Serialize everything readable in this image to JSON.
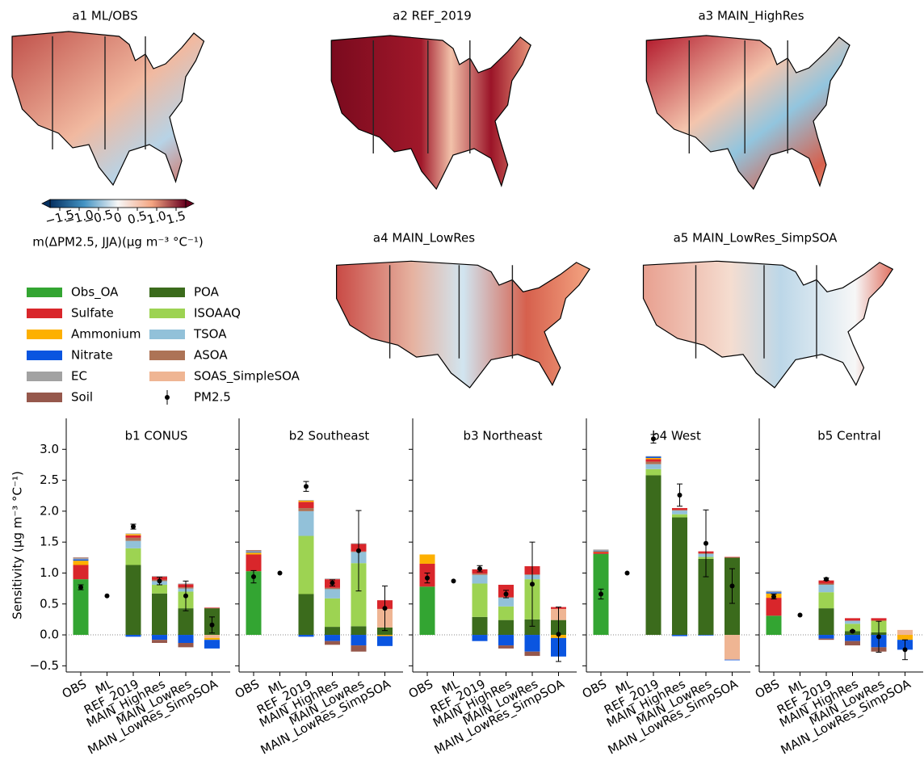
{
  "maps": [
    {
      "title": "a1 ML/OBS"
    },
    {
      "title": "a2 REF_2019"
    },
    {
      "title": "a3 MAIN_HighRes"
    },
    {
      "title": "a4 MAIN_LowRes"
    },
    {
      "title": "a5 MAIN_LowRes_SimpSOA"
    }
  ],
  "colorbar": {
    "label": "m(ΔPM2.5, JJA)(μg m⁻³ °C⁻¹)",
    "clim": [
      -1.75,
      1.75
    ],
    "ticks": [
      {
        "value": -1.5,
        "label": "−1.5"
      },
      {
        "value": -1,
        "label": "−1.0"
      },
      {
        "value": -0.5,
        "label": "−0.5"
      },
      0,
      0.5,
      {
        "value": 1,
        "label": "1.0"
      },
      1.5
    ]
  },
  "chart_data": [
    {
      "type": "bar",
      "title": "b1 CONUS",
      "ylabel": "Sensitivity (μg m⁻³ °C⁻¹)",
      "ylim": [
        -0.6,
        3.5
      ],
      "yticks": [
        {
          "value": -0.5,
          "label": "−0.5"
        },
        {
          "value": 0,
          "label": "0.0"
        },
        0.5,
        {
          "value": 1,
          "label": "1.0"
        },
        1.5,
        {
          "value": 2,
          "label": "2.0"
        },
        2.5,
        {
          "value": 3,
          "label": "3.0"
        }
      ],
      "categories": [
        "OBS",
        "ML",
        "REF_2019",
        "MAIN_HighRes",
        "MAIN_LowRes",
        "MAIN_LowRes_SimpSOA"
      ],
      "series": [
        {
          "name": "Obs_OA",
          "color": "#33a532",
          "values": [
            0.9,
            null,
            null,
            null,
            null,
            null
          ]
        },
        {
          "name": "POA",
          "color": "#3b6b1c",
          "values": [
            null,
            null,
            1.13,
            0.67,
            0.43,
            0.43
          ]
        },
        {
          "name": "ISOAAQ",
          "color": "#9dd352",
          "values": [
            null,
            null,
            0.27,
            0.14,
            0.27,
            null
          ]
        },
        {
          "name": "TSOA",
          "color": "#92c1d9",
          "values": [
            null,
            null,
            0.12,
            0.06,
            0.05,
            null
          ]
        },
        {
          "name": "ASOA",
          "color": "#ad7356",
          "values": [
            null,
            null,
            0.05,
            0.02,
            0.02,
            null
          ]
        },
        {
          "name": "SOAS_SimpleSOA",
          "color": "#efb593",
          "values": [
            null,
            null,
            null,
            null,
            null,
            -0.05
          ]
        },
        {
          "name": "Sulfate",
          "color": "#d9262b",
          "values": [
            0.23,
            null,
            0.04,
            0.05,
            0.05,
            0.01
          ]
        },
        {
          "name": "Ammonium",
          "color": "#fdb000",
          "values": [
            0.07,
            null,
            0.02,
            null,
            null,
            -0.03
          ]
        },
        {
          "name": "Nitrate",
          "color": "#0a55e0",
          "values": [
            0.02,
            null,
            -0.03,
            -0.08,
            -0.13,
            -0.14
          ]
        },
        {
          "name": "EC",
          "color": "#a2a2a2",
          "values": [
            0.02,
            null,
            0.01,
            0.01,
            0.01,
            null
          ]
        },
        {
          "name": "Soil",
          "color": "#96584c",
          "values": [
            0.01,
            null,
            null,
            -0.05,
            -0.07,
            null
          ]
        }
      ],
      "points": {
        "name": "PM2.5",
        "color": "#000000",
        "values": [
          0.77,
          0.63,
          1.75,
          0.87,
          0.63,
          0.16
        ],
        "errors": [
          0.04,
          null,
          0.04,
          0.06,
          0.24,
          0.13
        ]
      }
    },
    {
      "type": "bar",
      "title": "b2 Southeast",
      "ylim": [
        -0.6,
        3.5
      ],
      "categories": [
        "OBS",
        "ML",
        "REF_2019",
        "MAIN_HighRes",
        "MAIN_LowRes",
        "MAIN_LowRes_SimpSOA"
      ],
      "series": [
        {
          "name": "Obs_OA",
          "color": "#33a532",
          "values": [
            1.03,
            null,
            null,
            null,
            null,
            null
          ]
        },
        {
          "name": "POA",
          "color": "#3b6b1c",
          "values": [
            null,
            null,
            0.66,
            0.13,
            0.14,
            0.12
          ]
        },
        {
          "name": "ISOAAQ",
          "color": "#9dd352",
          "values": [
            null,
            null,
            0.94,
            0.46,
            1.02,
            null
          ]
        },
        {
          "name": "TSOA",
          "color": "#92c1d9",
          "values": [
            null,
            null,
            0.4,
            0.15,
            0.18,
            null
          ]
        },
        {
          "name": "ASOA",
          "color": "#ad7356",
          "values": [
            null,
            null,
            0.05,
            0.02,
            0.01,
            null
          ]
        },
        {
          "name": "SOAS_SimpleSOA",
          "color": "#efb593",
          "values": [
            null,
            null,
            null,
            null,
            null,
            0.3
          ]
        },
        {
          "name": "Sulfate",
          "color": "#d9262b",
          "values": [
            0.27,
            null,
            0.1,
            0.14,
            0.12,
            0.14
          ]
        },
        {
          "name": "Ammonium",
          "color": "#fdb000",
          "values": [
            0.03,
            null,
            0.02,
            null,
            null,
            -0.02
          ]
        },
        {
          "name": "Nitrate",
          "color": "#0a55e0",
          "values": [
            0.01,
            null,
            -0.03,
            -0.1,
            -0.17,
            -0.16
          ]
        },
        {
          "name": "EC",
          "color": "#a2a2a2",
          "values": [
            0.02,
            null,
            0.01,
            0.01,
            0.01,
            null
          ]
        },
        {
          "name": "Soil",
          "color": "#96584c",
          "values": [
            0.01,
            null,
            null,
            -0.06,
            -0.1,
            null
          ]
        }
      ],
      "points": {
        "name": "PM2.5",
        "color": "#000000",
        "values": [
          0.94,
          1.0,
          2.4,
          0.84,
          1.36,
          0.43
        ],
        "errors": [
          0.1,
          null,
          0.08,
          0.05,
          0.65,
          0.36
        ]
      }
    },
    {
      "type": "bar",
      "title": "b3 Northeast",
      "ylim": [
        -0.6,
        3.5
      ],
      "categories": [
        "OBS",
        "ML",
        "REF_2019",
        "MAIN_HighRes",
        "MAIN_LowRes",
        "MAIN_LowRes_SimpSOA"
      ],
      "series": [
        {
          "name": "Obs_OA",
          "color": "#33a532",
          "values": [
            0.78,
            null,
            null,
            null,
            null,
            null
          ]
        },
        {
          "name": "POA",
          "color": "#3b6b1c",
          "values": [
            null,
            null,
            0.29,
            0.24,
            0.25,
            0.24
          ]
        },
        {
          "name": "ISOAAQ",
          "color": "#9dd352",
          "values": [
            null,
            null,
            0.54,
            0.22,
            0.65,
            null
          ]
        },
        {
          "name": "TSOA",
          "color": "#92c1d9",
          "values": [
            null,
            null,
            0.14,
            0.14,
            0.07,
            null
          ]
        },
        {
          "name": "ASOA",
          "color": "#ad7356",
          "values": [
            null,
            null,
            0.02,
            0.01,
            0.01,
            null
          ]
        },
        {
          "name": "SOAS_SimpleSOA",
          "color": "#efb593",
          "values": [
            null,
            null,
            null,
            null,
            null,
            0.18
          ]
        },
        {
          "name": "Sulfate",
          "color": "#d9262b",
          "values": [
            0.37,
            null,
            0.07,
            0.2,
            0.13,
            0.03
          ]
        },
        {
          "name": "Ammonium",
          "color": "#fdb000",
          "values": [
            0.15,
            null,
            null,
            null,
            null,
            -0.05
          ]
        },
        {
          "name": "Nitrate",
          "color": "#0a55e0",
          "values": [
            null,
            null,
            -0.1,
            -0.17,
            -0.27,
            -0.3
          ]
        },
        {
          "name": "EC",
          "color": "#a2a2a2",
          "values": [
            null,
            null,
            null,
            null,
            null,
            null
          ]
        },
        {
          "name": "Soil",
          "color": "#96584c",
          "values": [
            null,
            null,
            null,
            -0.05,
            -0.07,
            null
          ]
        }
      ],
      "points": {
        "name": "PM2.5",
        "color": "#000000",
        "values": [
          0.92,
          0.87,
          1.07,
          0.66,
          0.82,
          0.01
        ],
        "errors": [
          0.08,
          null,
          0.05,
          0.06,
          0.68,
          0.44
        ]
      }
    },
    {
      "type": "bar",
      "title": "b4 West",
      "ylim": [
        -0.6,
        3.5
      ],
      "categories": [
        "OBS",
        "ML",
        "REF_2019",
        "MAIN_HighRes",
        "MAIN_LowRes",
        "MAIN_LowRes_SimpSOA"
      ],
      "series": [
        {
          "name": "Obs_OA",
          "color": "#33a532",
          "values": [
            1.31,
            null,
            null,
            null,
            null,
            null
          ]
        },
        {
          "name": "POA",
          "color": "#3b6b1c",
          "values": [
            null,
            null,
            2.58,
            1.9,
            1.23,
            1.25
          ]
        },
        {
          "name": "ISOAAQ",
          "color": "#9dd352",
          "values": [
            null,
            null,
            0.1,
            0.05,
            0.03,
            null
          ]
        },
        {
          "name": "TSOA",
          "color": "#92c1d9",
          "values": [
            null,
            null,
            0.08,
            0.06,
            0.05,
            null
          ]
        },
        {
          "name": "ASOA",
          "color": "#ad7356",
          "values": [
            null,
            null,
            0.04,
            0.01,
            0.01,
            null
          ]
        },
        {
          "name": "SOAS_SimpleSOA",
          "color": "#efb593",
          "values": [
            null,
            null,
            null,
            null,
            null,
            -0.4
          ]
        },
        {
          "name": "Sulfate",
          "color": "#d9262b",
          "values": [
            0.03,
            null,
            0.04,
            0.03,
            0.03,
            0.01
          ]
        },
        {
          "name": "Ammonium",
          "color": "#fdb000",
          "values": [
            0.01,
            null,
            0.02,
            null,
            null,
            null
          ]
        },
        {
          "name": "Nitrate",
          "color": "#0a55e0",
          "values": [
            0.01,
            null,
            0.02,
            -0.02,
            -0.01,
            -0.01
          ]
        },
        {
          "name": "EC",
          "color": "#a2a2a2",
          "values": [
            0.02,
            null,
            0.01,
            null,
            null,
            null
          ]
        },
        {
          "name": "Soil",
          "color": "#96584c",
          "values": [
            null,
            null,
            null,
            null,
            null,
            null
          ]
        }
      ],
      "points": {
        "name": "PM2.5",
        "color": "#000000",
        "values": [
          0.66,
          1.0,
          3.17,
          2.26,
          1.48,
          0.79
        ],
        "errors": [
          0.08,
          null,
          0.07,
          0.18,
          0.54,
          0.28
        ]
      }
    },
    {
      "type": "bar",
      "title": "b5 Central",
      "ylim": [
        -0.6,
        3.5
      ],
      "categories": [
        "OBS",
        "ML",
        "REF_2019",
        "MAIN_HighRes",
        "MAIN_LowRes",
        "MAIN_LowRes_SimpSOA"
      ],
      "series": [
        {
          "name": "Obs_OA",
          "color": "#33a532",
          "values": [
            0.31,
            null,
            null,
            null,
            null,
            null
          ]
        },
        {
          "name": "POA",
          "color": "#3b6b1c",
          "values": [
            null,
            null,
            0.43,
            0.06,
            0.04,
            null
          ]
        },
        {
          "name": "ISOAAQ",
          "color": "#9dd352",
          "values": [
            null,
            null,
            0.26,
            0.12,
            0.19,
            null
          ]
        },
        {
          "name": "TSOA",
          "color": "#92c1d9",
          "values": [
            null,
            null,
            0.12,
            0.05,
            null,
            null
          ]
        },
        {
          "name": "ASOA",
          "color": "#ad7356",
          "values": [
            null,
            null,
            0.02,
            null,
            null,
            null
          ]
        },
        {
          "name": "SOAS_SimpleSOA",
          "color": "#efb593",
          "values": [
            null,
            null,
            null,
            null,
            null,
            0.08
          ]
        },
        {
          "name": "Sulfate",
          "color": "#d9262b",
          "values": [
            0.29,
            null,
            0.05,
            0.04,
            0.04,
            null
          ]
        },
        {
          "name": "Ammonium",
          "color": "#fdb000",
          "values": [
            0.07,
            null,
            null,
            null,
            null,
            -0.08
          ]
        },
        {
          "name": "Nitrate",
          "color": "#0a55e0",
          "values": [
            0.02,
            null,
            -0.06,
            -0.1,
            -0.2,
            -0.16
          ]
        },
        {
          "name": "EC",
          "color": "#a2a2a2",
          "values": [
            0.02,
            null,
            null,
            null,
            null,
            null
          ]
        },
        {
          "name": "Soil",
          "color": "#96584c",
          "values": [
            null,
            null,
            -0.02,
            -0.07,
            -0.07,
            null
          ]
        }
      ],
      "points": {
        "name": "PM2.5",
        "color": "#000000",
        "values": [
          0.62,
          0.32,
          0.9,
          0.06,
          -0.03,
          -0.24
        ],
        "errors": [
          0.04,
          null,
          0.02,
          0.01,
          0.25,
          0.16
        ]
      }
    }
  ]
}
